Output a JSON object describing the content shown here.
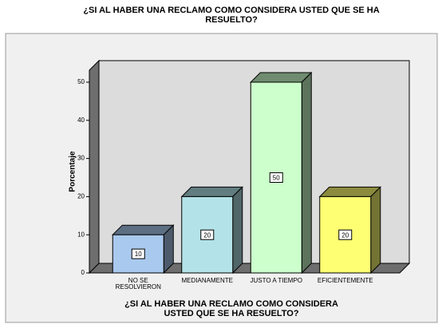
{
  "chart_data": {
    "type": "bar3d",
    "title": "¿SI AL HABER UNA RECLAMO COMO CONSIDERA USTED QUE SE HA RESUELTO?",
    "x_label": "¿SI AL HABER UNA RECLAMO COMO CONSIDERA USTED QUE SE HA RESUELTO?",
    "y_label": "Porcentaje",
    "categories": [
      "NO SE RESOLVIERON",
      "MEDIANAMENTE",
      "JUSTO A TIEMPO",
      "EFICIENTEMENTE"
    ],
    "values": [
      10,
      20,
      50,
      20
    ],
    "colors": [
      "#a9c9ee",
      "#b3e3e8",
      "#ccffcc",
      "#ffff73"
    ],
    "ylim": [
      0,
      50
    ],
    "yticks": [
      0,
      10,
      20,
      30,
      40,
      50
    ],
    "grid": false
  }
}
